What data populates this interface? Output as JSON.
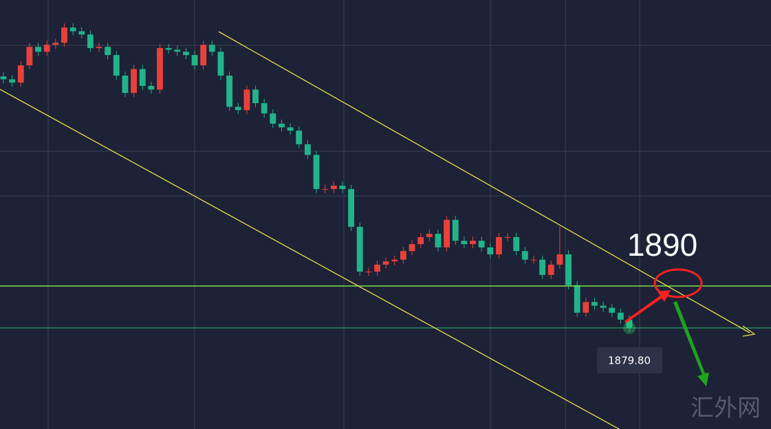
{
  "chart_data": {
    "type": "candlestick",
    "ylim": [
      1855.2,
      1959.6
    ],
    "up_color": "#e8413c",
    "down_color": "#22b38a",
    "open": [
      1941.0,
      1940.3,
      1939.5,
      1943.7,
      1948.2,
      1947.0,
      1948.7,
      1949.2,
      1952.9,
      1952.0,
      1951.2,
      1947.9,
      1948.2,
      1946.2,
      1941.2,
      1937.0,
      1942.8,
      1938.7,
      1937.8,
      1947.9,
      1947.5,
      1947.0,
      1946.2,
      1943.7,
      1948.7,
      1947.0,
      1941.2,
      1933.6,
      1932.8,
      1937.8,
      1934.5,
      1932.0,
      1929.5,
      1928.6,
      1927.8,
      1924.5,
      1921.9,
      1913.6,
      1913.6,
      1914.4,
      1913.6,
      1904.4,
      1893.5,
      1893.5,
      1895.2,
      1896.0,
      1896.4,
      1898.5,
      1900.2,
      1901.9,
      1902.7,
      1899.4,
      1906.1,
      1901.0,
      1900.2,
      1901.0,
      1899.4,
      1897.7,
      1901.9,
      1901.9,
      1898.5,
      1896.4,
      1896.4,
      1892.7,
      1895.2,
      1897.7,
      1890.2,
      1883.5,
      1886.1,
      1885.2,
      1884.7,
      1883.5,
      1881.8
    ],
    "high": [
      1942.0,
      1941.3,
      1944.7,
      1949.2,
      1949.2,
      1949.7,
      1950.2,
      1953.9,
      1953.9,
      1953.0,
      1952.2,
      1949.2,
      1949.2,
      1947.2,
      1942.2,
      1943.8,
      1943.8,
      1939.7,
      1948.9,
      1948.9,
      1948.5,
      1948.0,
      1947.2,
      1949.7,
      1949.7,
      1948.0,
      1942.2,
      1934.6,
      1938.8,
      1938.8,
      1935.5,
      1933.0,
      1930.5,
      1929.6,
      1928.8,
      1925.5,
      1922.9,
      1914.6,
      1915.4,
      1915.4,
      1914.6,
      1905.4,
      1894.5,
      1896.2,
      1897.0,
      1897.4,
      1899.5,
      1901.2,
      1902.9,
      1903.7,
      1903.7,
      1907.1,
      1907.1,
      1902.0,
      1902.0,
      1902.0,
      1900.4,
      1902.9,
      1902.9,
      1902.9,
      1899.5,
      1897.4,
      1897.4,
      1896.2,
      1904.5,
      1898.7,
      1891.2,
      1887.1,
      1887.1,
      1886.2,
      1885.7,
      1884.5,
      1882.8
    ],
    "low": [
      1939.3,
      1938.5,
      1938.5,
      1942.7,
      1946.0,
      1946.0,
      1947.7,
      1948.2,
      1951.0,
      1950.2,
      1946.9,
      1946.9,
      1945.2,
      1940.2,
      1936.0,
      1936.0,
      1937.7,
      1936.8,
      1936.8,
      1946.5,
      1946.0,
      1945.2,
      1942.7,
      1942.7,
      1946.0,
      1940.2,
      1932.6,
      1931.8,
      1931.8,
      1933.5,
      1931.0,
      1928.5,
      1927.6,
      1926.8,
      1923.5,
      1920.9,
      1912.6,
      1912.6,
      1912.6,
      1912.6,
      1903.4,
      1892.5,
      1892.5,
      1892.5,
      1894.2,
      1895.0,
      1895.4,
      1897.5,
      1899.2,
      1900.9,
      1898.4,
      1898.4,
      1900.0,
      1899.2,
      1899.2,
      1898.4,
      1896.7,
      1896.7,
      1900.9,
      1897.5,
      1895.4,
      1895.4,
      1891.7,
      1891.7,
      1894.2,
      1889.2,
      1882.5,
      1882.5,
      1884.2,
      1883.7,
      1882.5,
      1880.8,
      1878.8
    ],
    "close": [
      1940.3,
      1939.5,
      1943.7,
      1948.2,
      1947.0,
      1948.7,
      1949.2,
      1952.9,
      1952.0,
      1951.2,
      1947.9,
      1948.2,
      1946.2,
      1941.2,
      1937.0,
      1942.8,
      1938.7,
      1937.8,
      1947.9,
      1947.5,
      1947.0,
      1946.2,
      1943.7,
      1948.7,
      1947.0,
      1941.2,
      1933.6,
      1932.8,
      1937.8,
      1934.5,
      1932.0,
      1929.5,
      1928.6,
      1927.8,
      1924.5,
      1921.9,
      1913.6,
      1913.6,
      1914.4,
      1913.6,
      1904.4,
      1893.5,
      1893.5,
      1895.2,
      1896.0,
      1896.4,
      1898.5,
      1900.2,
      1901.9,
      1902.7,
      1899.4,
      1906.1,
      1901.0,
      1900.2,
      1901.0,
      1899.4,
      1897.7,
      1901.9,
      1901.9,
      1898.5,
      1896.4,
      1896.4,
      1892.7,
      1895.2,
      1897.7,
      1890.2,
      1883.5,
      1886.1,
      1885.2,
      1884.7,
      1883.5,
      1881.8,
      1879.8
    ],
    "price_lines": [
      {
        "value": 1890,
        "label": "1890",
        "color": "#7ee04a"
      },
      {
        "value": 1879.8,
        "label": "1879.80",
        "color": "#2a9d6f"
      }
    ],
    "watermark": "汇外网"
  }
}
